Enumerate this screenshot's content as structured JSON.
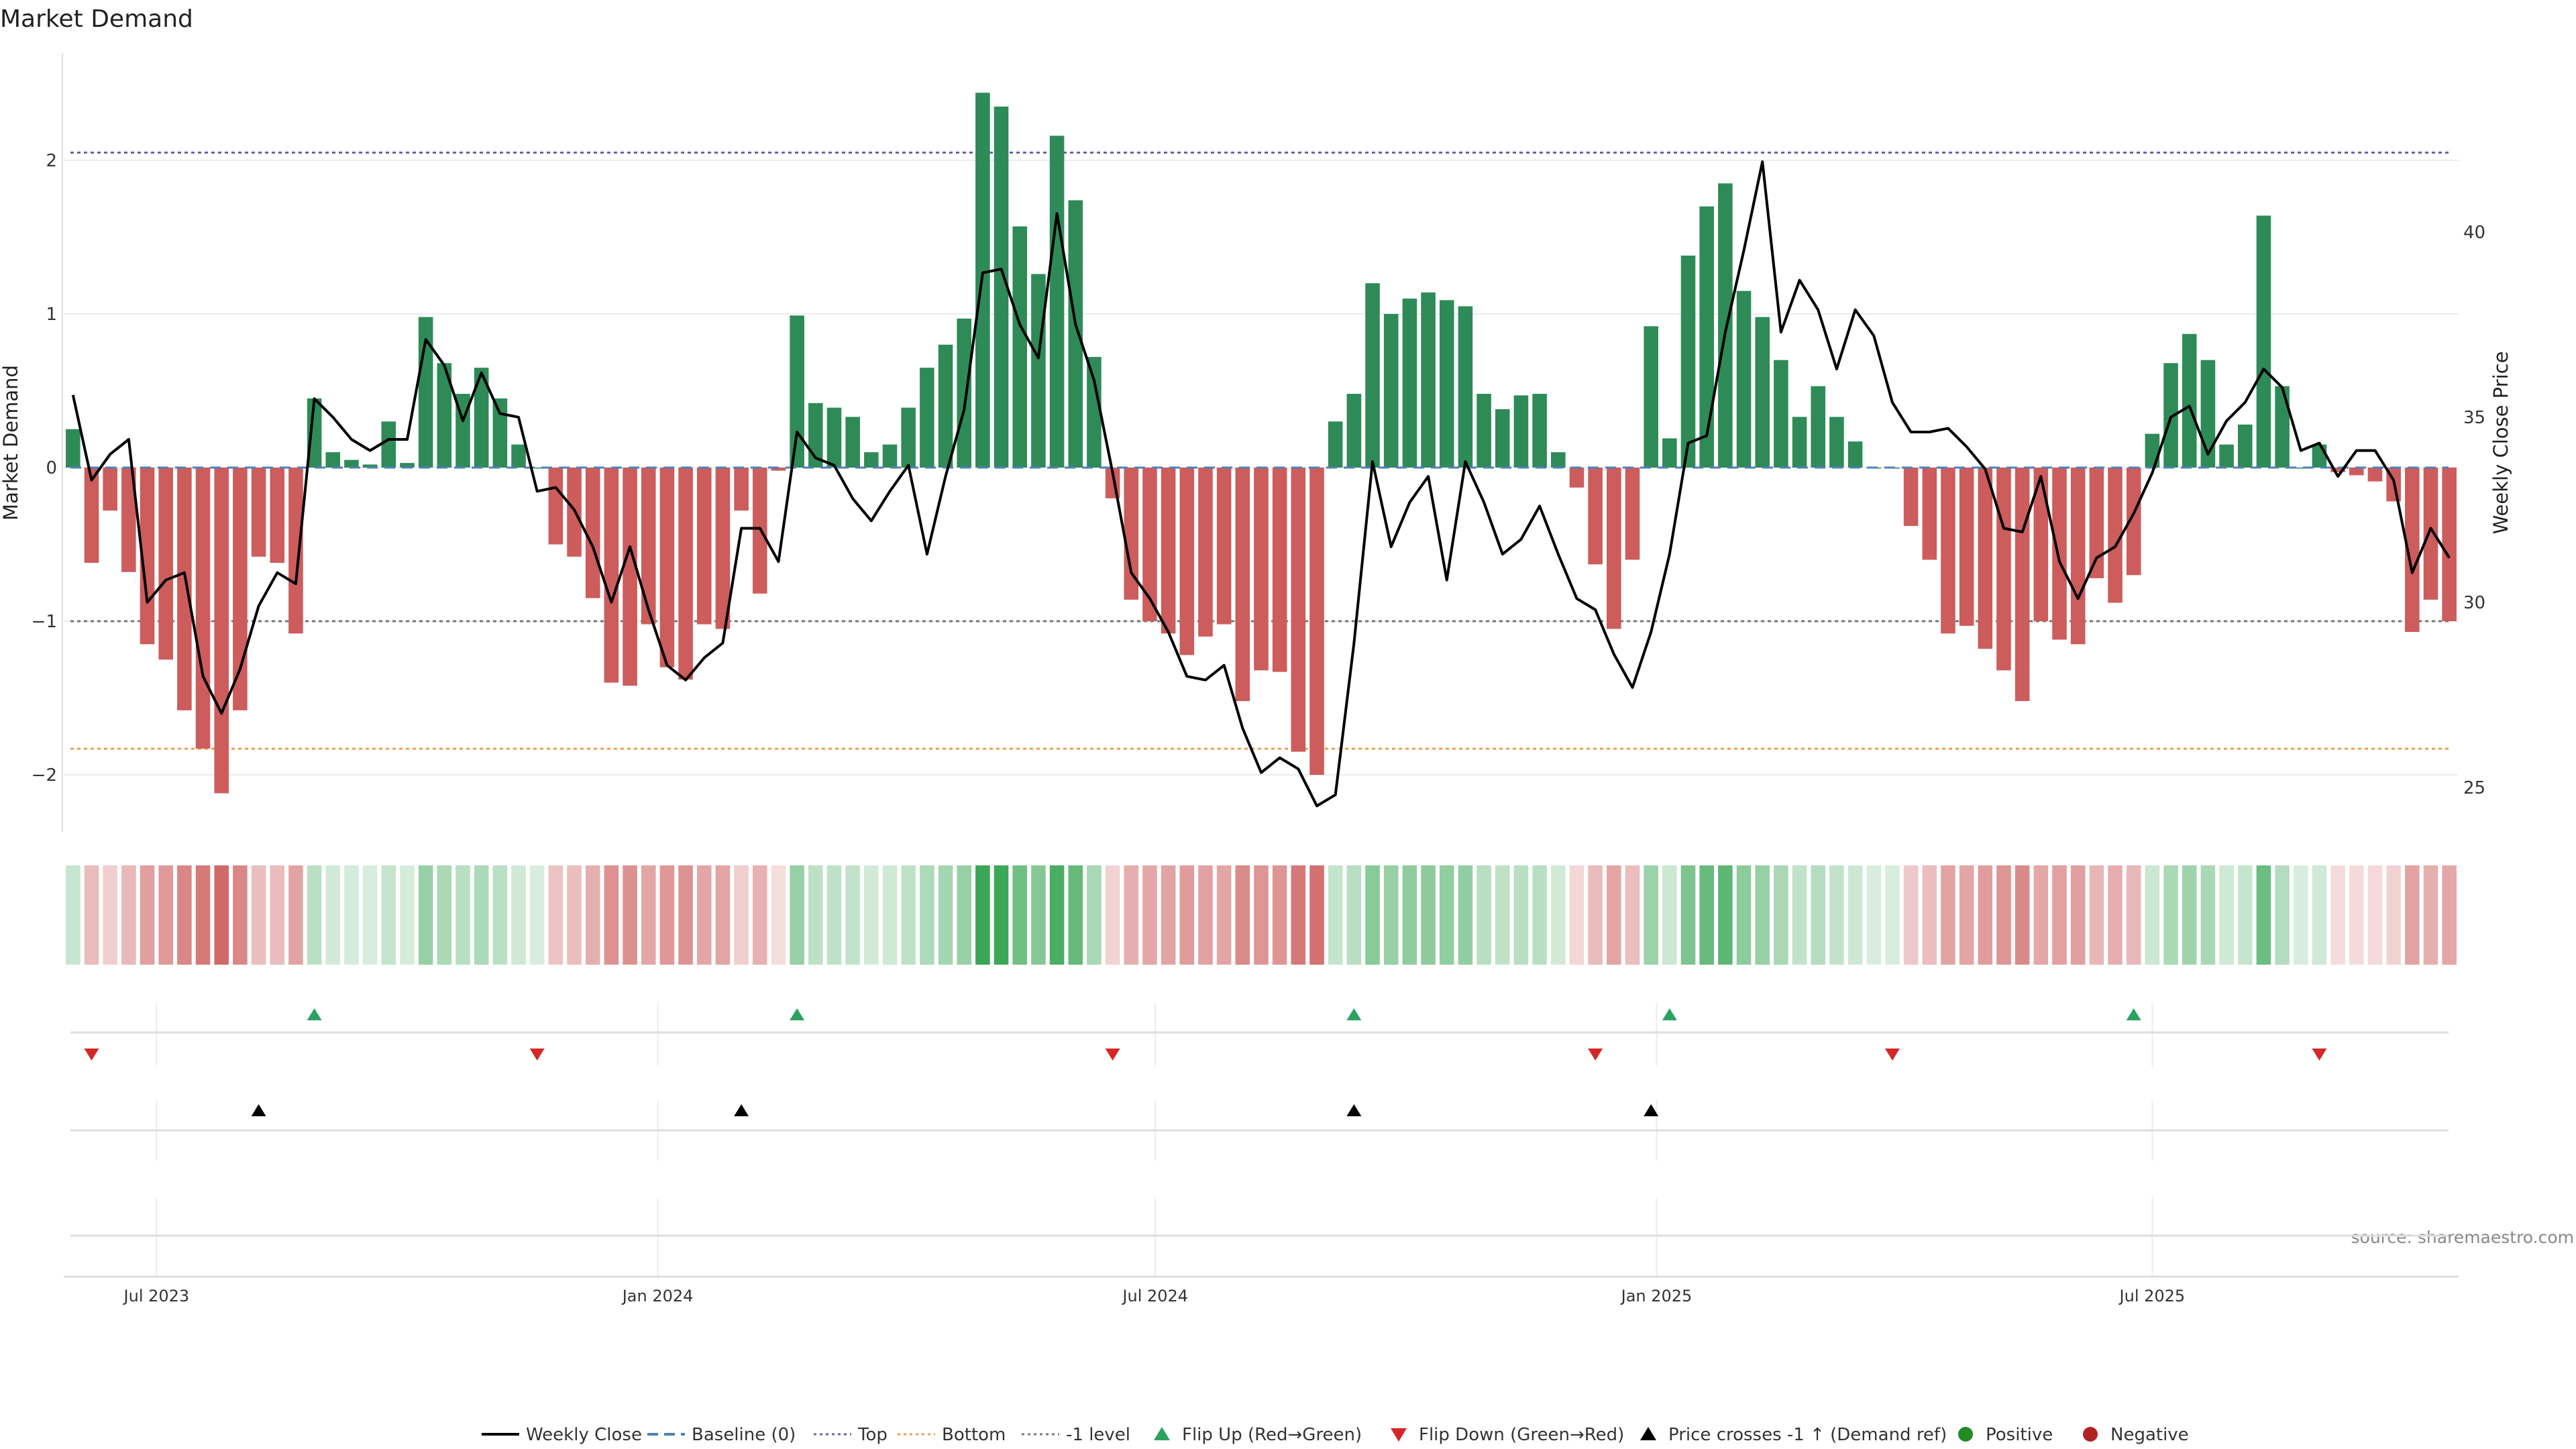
{
  "chart_data": {
    "type": "bar",
    "title": "Market Demand",
    "ylabel": "Market Demand",
    "y2label": "Weekly Close Price",
    "source_text": "source: sharemaestro.com",
    "ylim": [
      -2.35,
      2.6
    ],
    "y2lim": [
      23.8,
      45
    ],
    "yticks": [
      -2,
      -1,
      0,
      1,
      2
    ],
    "yticklabels": [
      "−2",
      "−1",
      "0",
      "1",
      "2"
    ],
    "y2ticks": [
      25,
      30,
      35,
      40
    ],
    "y2ticklabels": [
      "25",
      "30",
      "35",
      "40"
    ],
    "x_range": [
      0,
      131
    ],
    "xticks": [
      {
        "pos": 5.0,
        "label": "Jul 2023"
      },
      {
        "pos": 32.0,
        "label": "Jan 2024"
      },
      {
        "pos": 58.8,
        "label": "Jul 2024"
      },
      {
        "pos": 85.8,
        "label": "Jan 2025"
      },
      {
        "pos": 112.5,
        "label": "Jul 2025"
      }
    ],
    "reference_lines": {
      "top": 2.05,
      "bottom": -1.83,
      "minus_one": -1.0,
      "baseline": 0
    },
    "demand": [
      0.25,
      -0.62,
      -0.28,
      -0.68,
      -1.15,
      -1.25,
      -1.58,
      -1.83,
      -2.12,
      -1.58,
      -0.58,
      -0.62,
      -1.08,
      0.45,
      0.1,
      0.05,
      0.02,
      0.3,
      0.03,
      0.98,
      0.68,
      0.48,
      0.65,
      0.45,
      0.15,
      0.0,
      -0.5,
      -0.58,
      -0.85,
      -1.4,
      -1.42,
      -1.02,
      -1.3,
      -1.38,
      -1.02,
      -1.05,
      -0.28,
      -0.82,
      -0.02,
      0.99,
      0.42,
      0.39,
      0.33,
      0.1,
      0.15,
      0.39,
      0.65,
      0.8,
      0.97,
      2.44,
      2.35,
      1.57,
      1.26,
      2.16,
      1.74,
      0.72,
      -0.2,
      -0.86,
      -1.0,
      -1.08,
      -1.22,
      -1.1,
      -1.02,
      -1.52,
      -1.32,
      -1.33,
      -1.85,
      -2.0,
      0.3,
      0.48,
      1.2,
      1.0,
      1.1,
      1.14,
      1.09,
      1.05,
      0.48,
      0.38,
      0.47,
      0.48,
      0.1,
      -0.13,
      -0.63,
      -1.05,
      -0.6,
      0.92,
      0.19,
      1.38,
      1.7,
      1.85,
      1.15,
      0.98,
      0.7,
      0.33,
      0.53,
      0.33,
      0.17,
      0.0,
      0.0,
      -0.38,
      -0.6,
      -1.08,
      -1.03,
      -1.18,
      -1.32,
      -1.52,
      -1.0,
      -1.12,
      -1.15,
      -0.72,
      -0.88,
      -0.7,
      0.22,
      0.68,
      0.87,
      0.7,
      0.15,
      0.28,
      1.64,
      0.53,
      0.0,
      0.15,
      -0.03,
      -0.05,
      -0.09,
      -0.22,
      -1.07,
      -0.86,
      -1.0
    ],
    "weekly_close": [
      35.6,
      33.3,
      34.0,
      34.4,
      30.0,
      30.6,
      30.8,
      28.0,
      27.0,
      28.2,
      29.9,
      30.8,
      30.5,
      35.5,
      35.0,
      34.4,
      34.1,
      34.4,
      34.4,
      37.1,
      36.4,
      34.9,
      36.2,
      35.1,
      35.0,
      33.0,
      33.1,
      32.5,
      31.5,
      30.0,
      31.5,
      29.8,
      28.3,
      27.9,
      28.5,
      28.9,
      32.0,
      32.0,
      31.1,
      34.6,
      33.9,
      33.7,
      32.8,
      32.2,
      33.0,
      33.7,
      31.3,
      33.4,
      35.2,
      38.9,
      39.0,
      37.5,
      36.6,
      40.5,
      37.5,
      36.0,
      33.5,
      30.8,
      30.1,
      29.2,
      28.0,
      27.9,
      28.3,
      26.6,
      25.4,
      25.8,
      25.5,
      24.5,
      24.8,
      28.9,
      33.8,
      31.5,
      32.7,
      33.4,
      30.6,
      33.8,
      32.7,
      31.3,
      31.7,
      32.6,
      31.3,
      30.1,
      29.8,
      28.6,
      27.7,
      29.2,
      31.3,
      34.3,
      34.5,
      37.3,
      39.5,
      41.9,
      37.3,
      38.7,
      37.9,
      36.3,
      37.9,
      37.2,
      35.4,
      34.6,
      34.6,
      34.7,
      34.2,
      33.6,
      32.0,
      31.9,
      33.4,
      31.1,
      30.1,
      31.2,
      31.5,
      32.4,
      33.5,
      35.0,
      35.3,
      34.0,
      34.9,
      35.4,
      36.3,
      35.8,
      34.1,
      34.3,
      33.4,
      34.1,
      34.1,
      33.3,
      30.8,
      32.0,
      31.2
    ],
    "flip_up_weeks": [
      13,
      39,
      69,
      86,
      111
    ],
    "flip_down_weeks": [
      1,
      25,
      56,
      82,
      98,
      121
    ],
    "price_cross_weeks": [
      10,
      36,
      69,
      85
    ],
    "legend": [
      {
        "label": "Weekly Close",
        "kind": "line",
        "color": "#000000"
      },
      {
        "label": "Baseline (0)",
        "kind": "dash",
        "color": "#4f7fb8"
      },
      {
        "label": "Top",
        "kind": "dot",
        "color": "#6c5fb0"
      },
      {
        "label": "Bottom",
        "kind": "dot",
        "color": "#f0a04b"
      },
      {
        "label": "-1 level",
        "kind": "dot",
        "color": "#777777"
      },
      {
        "label": "Flip Up (Red→Green)",
        "kind": "tri-up",
        "color": "#2ca25f"
      },
      {
        "label": "Flip Down (Green→Red)",
        "kind": "tri-down",
        "color": "#d62728"
      },
      {
        "label": "Price crosses -1 ↑ (Demand ref)",
        "kind": "tri-up",
        "color": "#000000"
      },
      {
        "label": "Positive",
        "kind": "dot-marker",
        "color": "#228b22"
      },
      {
        "label": "Negative",
        "kind": "dot-marker",
        "color": "#b22222"
      }
    ],
    "colors": {
      "positive_bar": "#2e8b57",
      "negative_bar": "#cd5c5c",
      "heat_positive": "#3aa655",
      "heat_negative": "#cc5a5a",
      "price_line": "#000000",
      "grid": "#ececec",
      "axis_text": "#333333"
    }
  }
}
